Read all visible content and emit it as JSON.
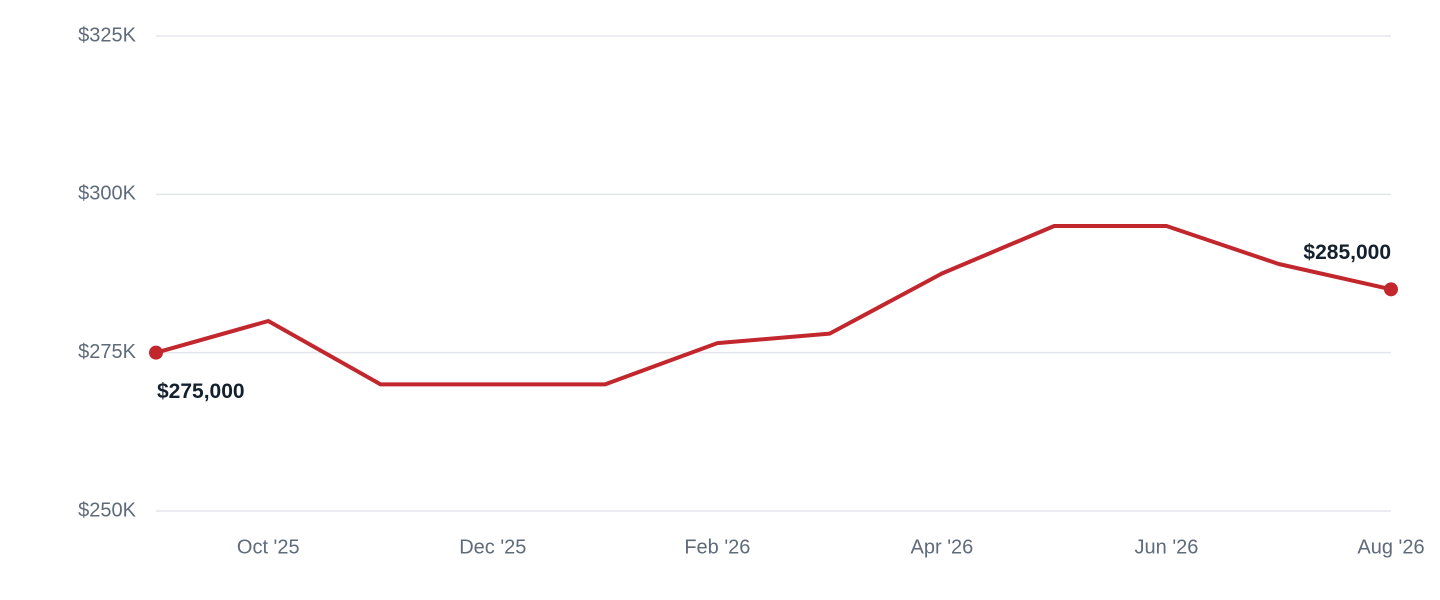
{
  "chart_data": {
    "type": "line",
    "categories": [
      null,
      "Oct '25",
      null,
      "Dec '25",
      null,
      "Feb '26",
      null,
      "Apr '26",
      null,
      "Jun '26",
      null,
      "Aug '26"
    ],
    "series": [
      {
        "color": "#c1272d",
        "values": [
          275000,
          280000,
          270000,
          270000,
          270000,
          276500,
          278000,
          287500,
          295000,
          295000,
          289000,
          285000
        ],
        "value_labels": [
          "$275,000",
          null,
          null,
          null,
          null,
          null,
          null,
          null,
          null,
          null,
          null,
          "$285,000"
        ]
      }
    ],
    "ylim": [
      250000,
      325000
    ],
    "yticks": [
      {
        "value": 250000,
        "label": "$250K"
      },
      {
        "value": 275000,
        "label": "$275K"
      },
      {
        "value": 300000,
        "label": "$300K"
      },
      {
        "value": 325000,
        "label": "$325K"
      }
    ],
    "grid": true
  }
}
